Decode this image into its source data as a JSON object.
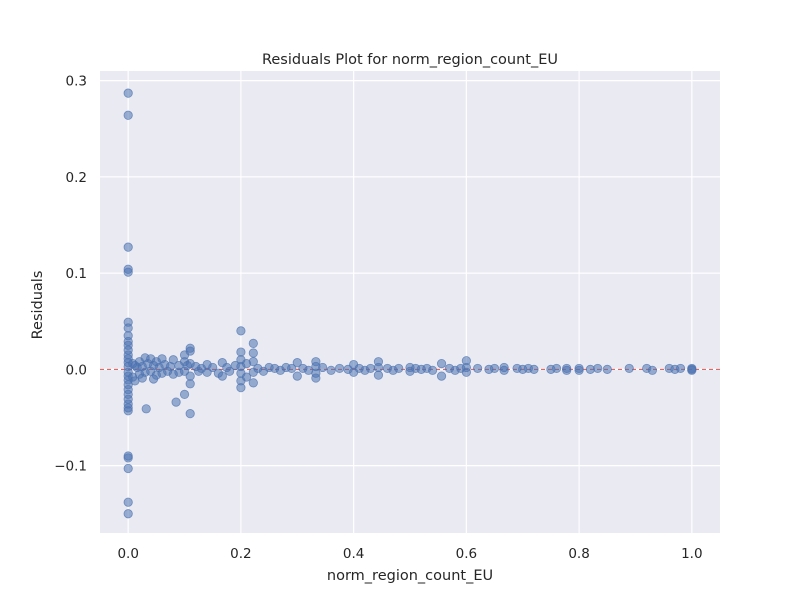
{
  "chart_data": {
    "type": "scatter",
    "title": "Residuals Plot for norm_region_count_EU",
    "xlabel": "norm_region_count_EU",
    "ylabel": "Residuals",
    "xlim": [
      -0.05,
      1.05
    ],
    "ylim": [
      -0.17,
      0.31
    ],
    "x_ticks": [
      0.0,
      0.2,
      0.4,
      0.6,
      0.8,
      1.0
    ],
    "x_tick_labels": [
      "0.0",
      "0.2",
      "0.4",
      "0.6",
      "0.8",
      "1.0"
    ],
    "y_ticks": [
      -0.1,
      0.0,
      0.1,
      0.2,
      0.3
    ],
    "y_tick_labels": [
      "−0.1",
      "0.0",
      "0.1",
      "0.2",
      "0.3"
    ],
    "grid": true,
    "reference_line": {
      "y": 0.0,
      "style": "dashed",
      "color": "#d9534f"
    },
    "marker_color": "#4c72b0",
    "background_color": "#eaeaf2",
    "points": [
      [
        0.0,
        0.287
      ],
      [
        0.0,
        0.264
      ],
      [
        0.0,
        0.127
      ],
      [
        0.0,
        0.104
      ],
      [
        0.0,
        0.101
      ],
      [
        0.0,
        0.049
      ],
      [
        0.0,
        0.043
      ],
      [
        0.0,
        0.035
      ],
      [
        0.0,
        0.029
      ],
      [
        0.0,
        0.025
      ],
      [
        0.0,
        0.02
      ],
      [
        0.0,
        0.015
      ],
      [
        0.0,
        0.011
      ],
      [
        0.0,
        0.007
      ],
      [
        0.0,
        0.003
      ],
      [
        0.0,
        -0.003
      ],
      [
        0.0,
        -0.007
      ],
      [
        0.0,
        -0.011
      ],
      [
        0.0,
        -0.016
      ],
      [
        0.0,
        -0.021
      ],
      [
        0.0,
        -0.026
      ],
      [
        0.0,
        -0.031
      ],
      [
        0.0,
        -0.036
      ],
      [
        0.0,
        -0.04
      ],
      [
        0.0,
        -0.043
      ],
      [
        0.0,
        -0.09
      ],
      [
        0.0,
        -0.092
      ],
      [
        0.0,
        -0.103
      ],
      [
        0.0,
        -0.138
      ],
      [
        0.0,
        -0.15
      ],
      [
        0.008,
        0.006
      ],
      [
        0.008,
        -0.008
      ],
      [
        0.012,
        0.004
      ],
      [
        0.012,
        -0.012
      ],
      [
        0.016,
        0.002
      ],
      [
        0.02,
        0.008
      ],
      [
        0.02,
        -0.005
      ],
      [
        0.025,
        0.003
      ],
      [
        0.025,
        -0.009
      ],
      [
        0.03,
        0.012
      ],
      [
        0.03,
        -0.003
      ],
      [
        0.032,
        -0.041
      ],
      [
        0.035,
        0.006
      ],
      [
        0.04,
        0.011
      ],
      [
        0.04,
        -0.002
      ],
      [
        0.045,
        0.004
      ],
      [
        0.045,
        -0.01
      ],
      [
        0.05,
        0.008
      ],
      [
        0.05,
        -0.006
      ],
      [
        0.055,
        0.002
      ],
      [
        0.06,
        0.011
      ],
      [
        0.06,
        -0.004
      ],
      [
        0.065,
        0.005
      ],
      [
        0.07,
        -0.002
      ],
      [
        0.075,
        0.003
      ],
      [
        0.08,
        0.01
      ],
      [
        0.08,
        -0.005
      ],
      [
        0.085,
        -0.034
      ],
      [
        0.09,
        0.004
      ],
      [
        0.09,
        -0.003
      ],
      [
        0.1,
        0.015
      ],
      [
        0.1,
        0.008
      ],
      [
        0.1,
        -0.002
      ],
      [
        0.1,
        -0.026
      ],
      [
        0.105,
        0.004
      ],
      [
        0.11,
        0.022
      ],
      [
        0.11,
        0.019
      ],
      [
        0.11,
        0.006
      ],
      [
        0.11,
        -0.007
      ],
      [
        0.11,
        -0.015
      ],
      [
        0.11,
        -0.046
      ],
      [
        0.12,
        0.003
      ],
      [
        0.125,
        -0.002
      ],
      [
        0.13,
        0.001
      ],
      [
        0.14,
        0.005
      ],
      [
        0.14,
        -0.003
      ],
      [
        0.15,
        0.002
      ],
      [
        0.16,
        -0.004
      ],
      [
        0.167,
        0.007
      ],
      [
        0.167,
        -0.007
      ],
      [
        0.175,
        0.002
      ],
      [
        0.18,
        -0.002
      ],
      [
        0.19,
        0.004
      ],
      [
        0.2,
        0.04
      ],
      [
        0.2,
        0.018
      ],
      [
        0.2,
        0.01
      ],
      [
        0.2,
        0.003
      ],
      [
        0.2,
        -0.004
      ],
      [
        0.2,
        -0.012
      ],
      [
        0.2,
        -0.019
      ],
      [
        0.21,
        0.006
      ],
      [
        0.21,
        -0.008
      ],
      [
        0.222,
        0.027
      ],
      [
        0.222,
        0.017
      ],
      [
        0.222,
        0.008
      ],
      [
        0.222,
        -0.003
      ],
      [
        0.222,
        -0.014
      ],
      [
        0.23,
        0.001
      ],
      [
        0.24,
        -0.002
      ],
      [
        0.25,
        0.002
      ],
      [
        0.26,
        0.001
      ],
      [
        0.27,
        -0.001
      ],
      [
        0.28,
        0.002
      ],
      [
        0.29,
        0.001
      ],
      [
        0.3,
        0.007
      ],
      [
        0.3,
        -0.007
      ],
      [
        0.31,
        0.001
      ],
      [
        0.32,
        -0.001
      ],
      [
        0.333,
        0.008
      ],
      [
        0.333,
        0.003
      ],
      [
        0.333,
        -0.004
      ],
      [
        0.333,
        -0.009
      ],
      [
        0.345,
        0.002
      ],
      [
        0.36,
        -0.001
      ],
      [
        0.375,
        0.001
      ],
      [
        0.39,
        0.0
      ],
      [
        0.4,
        0.005
      ],
      [
        0.4,
        -0.003
      ],
      [
        0.41,
        0.001
      ],
      [
        0.42,
        -0.001
      ],
      [
        0.43,
        0.001
      ],
      [
        0.444,
        0.008
      ],
      [
        0.444,
        0.002
      ],
      [
        0.444,
        -0.006
      ],
      [
        0.46,
        0.001
      ],
      [
        0.47,
        -0.001
      ],
      [
        0.48,
        0.001
      ],
      [
        0.5,
        0.002
      ],
      [
        0.5,
        -0.002
      ],
      [
        0.51,
        0.001
      ],
      [
        0.52,
        0.0
      ],
      [
        0.53,
        0.001
      ],
      [
        0.54,
        -0.001
      ],
      [
        0.556,
        0.006
      ],
      [
        0.556,
        -0.007
      ],
      [
        0.57,
        0.001
      ],
      [
        0.58,
        -0.001
      ],
      [
        0.59,
        0.001
      ],
      [
        0.6,
        0.009
      ],
      [
        0.6,
        0.002
      ],
      [
        0.6,
        -0.003
      ],
      [
        0.62,
        0.001
      ],
      [
        0.64,
        0.0
      ],
      [
        0.65,
        0.001
      ],
      [
        0.667,
        0.002
      ],
      [
        0.667,
        -0.001
      ],
      [
        0.69,
        0.001
      ],
      [
        0.7,
        0.0
      ],
      [
        0.71,
        0.001
      ],
      [
        0.72,
        0.0
      ],
      [
        0.75,
        0.0
      ],
      [
        0.76,
        0.001
      ],
      [
        0.778,
        0.001
      ],
      [
        0.778,
        -0.001
      ],
      [
        0.8,
        0.001
      ],
      [
        0.8,
        -0.001
      ],
      [
        0.82,
        0.0
      ],
      [
        0.833,
        0.001
      ],
      [
        0.85,
        0.0
      ],
      [
        0.889,
        0.001
      ],
      [
        0.92,
        0.001
      ],
      [
        0.93,
        -0.001
      ],
      [
        0.96,
        0.001
      ],
      [
        0.97,
        0.0
      ],
      [
        0.98,
        0.001
      ],
      [
        1.0,
        0.001
      ],
      [
        1.0,
        0.0
      ],
      [
        1.0,
        -0.001
      ]
    ]
  }
}
